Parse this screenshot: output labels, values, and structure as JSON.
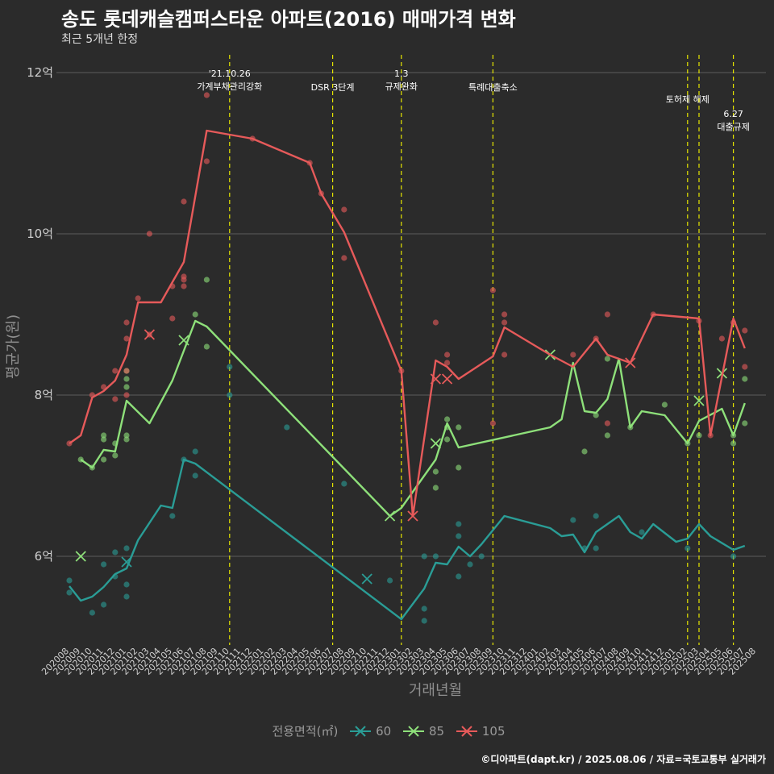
{
  "header": {
    "title": "송도 롯데캐슬캠퍼스타운 아파트(2016) 매매가격 변화",
    "subtitle": "최근 5개년 한정"
  },
  "footer": {
    "source": "©디아파트(dapt.kr) / 2025.08.06 / 자료=국토교통부 실거래가"
  },
  "legend": {
    "title": "전용면적(㎡)",
    "items": [
      {
        "label": "60",
        "color": "#2a9d96"
      },
      {
        "label": "85",
        "color": "#8ee07a"
      },
      {
        "label": "105",
        "color": "#e65a5a"
      }
    ]
  },
  "chart_data": {
    "type": "line",
    "title": "송도 롯데캐슬캠퍼스타운 아파트(2016) 매매가격 변화",
    "xlabel": "거래년월",
    "ylabel": "평균가(원)",
    "ylim": [
      4.9,
      12.3
    ],
    "yticks": [
      6,
      8,
      10,
      12
    ],
    "ytick_labels": [
      "6억",
      "8억",
      "10억",
      "12억"
    ],
    "grid": "horizontal",
    "legend_position": "bottom",
    "categories": [
      "202008",
      "202009",
      "202010",
      "202011",
      "202012",
      "202101",
      "202102",
      "202103",
      "202104",
      "202105",
      "202106",
      "202107",
      "202108",
      "202109",
      "202110",
      "202111",
      "202112",
      "202201",
      "202202",
      "202203",
      "202204",
      "202205",
      "202206",
      "202207",
      "202208",
      "202209",
      "202210",
      "202211",
      "202212",
      "202301",
      "202302",
      "202303",
      "202304",
      "202305",
      "202306",
      "202307",
      "202308",
      "202309",
      "202310",
      "202311",
      "202312",
      "202401",
      "202402",
      "202403",
      "202404",
      "202405",
      "202406",
      "202407",
      "202408",
      "202409",
      "202410",
      "202411",
      "202412",
      "202501",
      "202502",
      "202503",
      "202504",
      "202505",
      "202506",
      "202507",
      "202508"
    ],
    "series": [
      {
        "name": "60",
        "color": "#2a9d96",
        "points": [
          [
            "202008",
            5.63
          ],
          [
            "202009",
            5.45
          ],
          [
            "202010",
            5.5
          ],
          [
            "202011",
            5.62
          ],
          [
            "202012",
            5.78
          ],
          [
            "202101",
            5.85
          ],
          [
            "202102",
            6.2
          ],
          [
            "202104",
            6.63
          ],
          [
            "202105",
            6.6
          ],
          [
            "202106",
            7.2
          ],
          [
            "202107",
            7.15
          ],
          [
            "202301",
            5.22
          ],
          [
            "202303",
            5.6
          ],
          [
            "202304",
            5.92
          ],
          [
            "202305",
            5.9
          ],
          [
            "202306",
            6.12
          ],
          [
            "202307",
            6.0
          ],
          [
            "202308",
            6.15
          ],
          [
            "202310",
            6.5
          ],
          [
            "202402",
            6.35
          ],
          [
            "202403",
            6.25
          ],
          [
            "202404",
            6.27
          ],
          [
            "202405",
            6.05
          ],
          [
            "202406",
            6.3
          ],
          [
            "202407",
            6.4
          ],
          [
            "202408",
            6.5
          ],
          [
            "202409",
            6.3
          ],
          [
            "202410",
            6.22
          ],
          [
            "202411",
            6.4
          ],
          [
            "202501",
            6.18
          ],
          [
            "202502",
            6.22
          ],
          [
            "202503",
            6.4
          ],
          [
            "202504",
            6.25
          ],
          [
            "202506",
            6.08
          ],
          [
            "202507",
            6.13
          ]
        ],
        "scatter": [
          [
            "202008",
            5.7
          ],
          [
            "202008",
            5.55
          ],
          [
            "202010",
            5.3
          ],
          [
            "202011",
            5.4
          ],
          [
            "202011",
            5.9
          ],
          [
            "202012",
            6.05
          ],
          [
            "202012",
            5.75
          ],
          [
            "202101",
            5.5
          ],
          [
            "202101",
            5.65
          ],
          [
            "202101",
            6.1
          ],
          [
            "202105",
            6.5
          ],
          [
            "202106",
            7.2
          ],
          [
            "202107",
            7.3
          ],
          [
            "202107",
            7.0
          ],
          [
            "202110",
            8.35
          ],
          [
            "202110",
            8.0
          ],
          [
            "202203",
            7.6
          ],
          [
            "202208",
            6.9
          ],
          [
            "202212",
            5.7
          ],
          [
            "202303",
            6.0
          ],
          [
            "202303",
            5.35
          ],
          [
            "202303",
            5.2
          ],
          [
            "202304",
            6.0
          ],
          [
            "202306",
            6.4
          ],
          [
            "202306",
            6.25
          ],
          [
            "202306",
            5.75
          ],
          [
            "202307",
            5.9
          ],
          [
            "202308",
            6.0
          ],
          [
            "202404",
            6.45
          ],
          [
            "202405",
            6.1
          ],
          [
            "202406",
            6.5
          ],
          [
            "202406",
            6.1
          ],
          [
            "202410",
            6.3
          ],
          [
            "202502",
            6.1
          ],
          [
            "202506",
            6.0
          ]
        ],
        "crosses": [
          [
            "202101",
            5.93
          ],
          [
            "202210",
            5.72
          ]
        ]
      },
      {
        "name": "85",
        "color": "#8ee07a",
        "points": [
          [
            "202009",
            7.2
          ],
          [
            "202010",
            7.1
          ],
          [
            "202011",
            7.32
          ],
          [
            "202012",
            7.3
          ],
          [
            "202101",
            7.93
          ],
          [
            "202103",
            7.65
          ],
          [
            "202105",
            8.18
          ],
          [
            "202107",
            8.92
          ],
          [
            "202108",
            8.85
          ],
          [
            "202212",
            6.5
          ],
          [
            "202301",
            6.6
          ],
          [
            "202304",
            7.2
          ],
          [
            "202305",
            7.65
          ],
          [
            "202306",
            7.35
          ],
          [
            "202402",
            7.6
          ],
          [
            "202403",
            7.7
          ],
          [
            "202404",
            8.4
          ],
          [
            "202405",
            7.8
          ],
          [
            "202406",
            7.78
          ],
          [
            "202407",
            7.95
          ],
          [
            "202408",
            8.45
          ],
          [
            "202409",
            7.6
          ],
          [
            "202410",
            7.8
          ],
          [
            "202412",
            7.75
          ],
          [
            "202502",
            7.4
          ],
          [
            "202503",
            7.68
          ],
          [
            "202505",
            7.83
          ],
          [
            "202506",
            7.5
          ],
          [
            "202507",
            7.9
          ]
        ],
        "scatter": [
          [
            "202009",
            7.2
          ],
          [
            "202010",
            7.1
          ],
          [
            "202011",
            7.5
          ],
          [
            "202011",
            7.45
          ],
          [
            "202011",
            7.2
          ],
          [
            "202012",
            7.4
          ],
          [
            "202012",
            7.25
          ],
          [
            "202101",
            8.3
          ],
          [
            "202101",
            8.2
          ],
          [
            "202101",
            8.1
          ],
          [
            "202101",
            7.5
          ],
          [
            "202101",
            7.45
          ],
          [
            "202107",
            9.0
          ],
          [
            "202108",
            9.43
          ],
          [
            "202108",
            8.6
          ],
          [
            "202304",
            6.85
          ],
          [
            "202304",
            7.05
          ],
          [
            "202305",
            7.7
          ],
          [
            "202305",
            7.6
          ],
          [
            "202305",
            7.45
          ],
          [
            "202306",
            7.6
          ],
          [
            "202306",
            7.1
          ],
          [
            "202405",
            7.3
          ],
          [
            "202406",
            7.75
          ],
          [
            "202407",
            8.45
          ],
          [
            "202407",
            7.5
          ],
          [
            "202409",
            7.6
          ],
          [
            "202412",
            7.88
          ],
          [
            "202502",
            7.4
          ],
          [
            "202503",
            7.5
          ],
          [
            "202506",
            7.5
          ],
          [
            "202506",
            7.4
          ],
          [
            "202507",
            8.2
          ],
          [
            "202507",
            7.65
          ]
        ],
        "crosses": [
          [
            "202009",
            6.0
          ],
          [
            "202106",
            8.68
          ],
          [
            "202212",
            6.5
          ],
          [
            "202304",
            7.4
          ],
          [
            "202402",
            8.5
          ],
          [
            "202503",
            7.93
          ],
          [
            "202505",
            8.27
          ]
        ]
      },
      {
        "name": "105",
        "color": "#e65a5a",
        "points": [
          [
            "202008",
            7.4
          ],
          [
            "202009",
            7.5
          ],
          [
            "202010",
            7.97
          ],
          [
            "202011",
            8.05
          ],
          [
            "202012",
            8.18
          ],
          [
            "202101",
            8.5
          ],
          [
            "202102",
            9.15
          ],
          [
            "202104",
            9.15
          ],
          [
            "202106",
            9.65
          ],
          [
            "202108",
            11.28
          ],
          [
            "202112",
            11.18
          ],
          [
            "202205",
            10.88
          ],
          [
            "202206",
            10.5
          ],
          [
            "202208",
            10.02
          ],
          [
            "202301",
            8.3
          ],
          [
            "202302",
            6.5
          ],
          [
            "202304",
            8.43
          ],
          [
            "202305",
            8.35
          ],
          [
            "202306",
            8.2
          ],
          [
            "202309",
            8.48
          ],
          [
            "202310",
            8.84
          ],
          [
            "202402",
            8.5
          ],
          [
            "202404",
            8.35
          ],
          [
            "202406",
            8.7
          ],
          [
            "202407",
            8.5
          ],
          [
            "202408",
            8.45
          ],
          [
            "202409",
            8.4
          ],
          [
            "202411",
            9.0
          ],
          [
            "202503",
            8.95
          ],
          [
            "202504",
            7.5
          ],
          [
            "202506",
            8.95
          ],
          [
            "202507",
            8.58
          ]
        ],
        "scatter": [
          [
            "202008",
            7.4
          ],
          [
            "202010",
            8.0
          ],
          [
            "202011",
            8.1
          ],
          [
            "202012",
            8.3
          ],
          [
            "202012",
            7.95
          ],
          [
            "202101",
            8.9
          ],
          [
            "202101",
            8.7
          ],
          [
            "202101",
            8.3
          ],
          [
            "202101",
            8.0
          ],
          [
            "202102",
            9.2
          ],
          [
            "202103",
            10.0
          ],
          [
            "202103",
            8.75
          ],
          [
            "202105",
            9.35
          ],
          [
            "202105",
            8.95
          ],
          [
            "202106",
            10.4
          ],
          [
            "202106",
            9.47
          ],
          [
            "202106",
            9.43
          ],
          [
            "202106",
            9.35
          ],
          [
            "202108",
            11.72
          ],
          [
            "202108",
            10.9
          ],
          [
            "202112",
            11.18
          ],
          [
            "202205",
            10.88
          ],
          [
            "202206",
            10.5
          ],
          [
            "202208",
            10.3
          ],
          [
            "202208",
            9.7
          ],
          [
            "202301",
            8.3
          ],
          [
            "202304",
            8.9
          ],
          [
            "202305",
            8.5
          ],
          [
            "202305",
            8.4
          ],
          [
            "202309",
            9.3
          ],
          [
            "202309",
            7.65
          ],
          [
            "202310",
            9.0
          ],
          [
            "202310",
            8.9
          ],
          [
            "202310",
            8.5
          ],
          [
            "202404",
            8.5
          ],
          [
            "202406",
            8.7
          ],
          [
            "202407",
            9.0
          ],
          [
            "202407",
            7.65
          ],
          [
            "202411",
            9.0
          ],
          [
            "202503",
            8.92
          ],
          [
            "202504",
            7.5
          ],
          [
            "202505",
            8.7
          ],
          [
            "202506",
            8.9
          ],
          [
            "202507",
            8.8
          ],
          [
            "202507",
            8.35
          ]
        ],
        "crosses": [
          [
            "202103",
            8.75
          ],
          [
            "202302",
            6.5
          ],
          [
            "202304",
            8.2
          ],
          [
            "202305",
            8.2
          ],
          [
            "202409",
            8.4
          ]
        ]
      }
    ],
    "annotations": [
      {
        "x": "202110",
        "lines": [
          "'21.10.26",
          "가계부채관리강화"
        ],
        "level": 0
      },
      {
        "x": "202207",
        "lines": [
          "DSR 3단계"
        ],
        "level": 2
      },
      {
        "x": "202301",
        "lines": [
          "1.3",
          "규제완화"
        ],
        "level": 0
      },
      {
        "x": "202309",
        "lines": [
          "특례대출축소"
        ],
        "level": 2
      },
      {
        "x": "202502",
        "lines": [
          "토허제 해제"
        ],
        "level": 1
      },
      {
        "x": "202503",
        "lines": [],
        "level": 1
      },
      {
        "x": "202506",
        "lines": [
          "6.27",
          "대출규제"
        ],
        "level": 3
      }
    ]
  }
}
